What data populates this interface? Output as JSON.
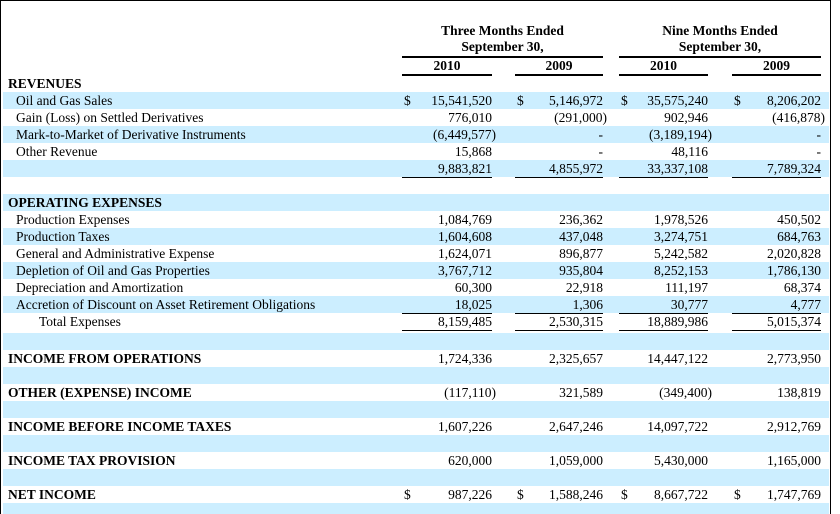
{
  "header": {
    "three_months": "Three Months Ended",
    "nine_months": "Nine Months Ended",
    "period_end_1": "September 30,",
    "period_end_2": "September 30,",
    "years": [
      "2010",
      "2009",
      "2010",
      "2009"
    ]
  },
  "colors": {
    "stripe": "#cceeff"
  },
  "rows": [
    {
      "label": "REVENUES",
      "style": "head",
      "values": []
    },
    {
      "label": "Oil and Gas Sales",
      "values": [
        "15,541,520",
        "5,146,972",
        "35,575,240",
        "8,206,202"
      ],
      "currency": true
    },
    {
      "label": "Gain (Loss) on Settled Derivatives",
      "values": [
        "776,010",
        "(291,000)",
        "902,946",
        "(416,878)"
      ]
    },
    {
      "label": "Mark-to-Market of Derivative Instruments",
      "values": [
        "(6,449,577)",
        "-",
        "(3,189,194)",
        "-"
      ]
    },
    {
      "label": "Other Revenue",
      "values": [
        "15,868",
        "-",
        "48,116",
        "-"
      ],
      "underline": "u"
    },
    {
      "label": "",
      "values": [
        "9,883,821",
        "4,855,972",
        "33,337,108",
        "7,789,324"
      ],
      "underline": "u"
    },
    {
      "label": "",
      "values": []
    },
    {
      "label": "OPERATING EXPENSES",
      "style": "head",
      "values": []
    },
    {
      "label": "Production Expenses",
      "values": [
        "1,084,769",
        "236,362",
        "1,978,526",
        "450,502"
      ]
    },
    {
      "label": "Production Taxes",
      "values": [
        "1,604,608",
        "437,048",
        "3,274,751",
        "684,763"
      ]
    },
    {
      "label": "General and Administrative Expense",
      "values": [
        "1,624,071",
        "896,877",
        "5,242,582",
        "2,020,828"
      ]
    },
    {
      "label": "Depletion of Oil and Gas Properties",
      "values": [
        "3,767,712",
        "935,804",
        "8,252,153",
        "1,786,130"
      ]
    },
    {
      "label": "Depreciation and Amortization",
      "values": [
        "60,300",
        "22,918",
        "111,197",
        "68,374"
      ]
    },
    {
      "label": "Accretion of Discount on Asset Retirement Obligations",
      "values": [
        "18,025",
        "1,306",
        "30,777",
        "4,777"
      ],
      "underline": "u"
    },
    {
      "label": "Total Expenses",
      "style": "ind2",
      "values": [
        "8,159,485",
        "2,530,315",
        "18,889,986",
        "5,015,374"
      ],
      "underline": "u"
    },
    {
      "label": "",
      "values": []
    },
    {
      "label": "INCOME FROM OPERATIONS",
      "style": "head",
      "values": [
        "1,724,336",
        "2,325,657",
        "14,447,122",
        "2,773,950"
      ]
    },
    {
      "label": "",
      "values": []
    },
    {
      "label": "OTHER (EXPENSE) INCOME",
      "style": "head",
      "values": [
        "(117,110)",
        "321,589",
        "(349,400)",
        "138,819"
      ],
      "underline": "u"
    },
    {
      "label": "",
      "values": []
    },
    {
      "label": "INCOME BEFORE INCOME TAXES",
      "style": "head",
      "values": [
        "1,607,226",
        "2,647,246",
        "14,097,722",
        "2,912,769"
      ]
    },
    {
      "label": "",
      "values": []
    },
    {
      "label": "INCOME TAX PROVISION",
      "style": "head",
      "values": [
        "620,000",
        "1,059,000",
        "5,430,000",
        "1,165,000"
      ],
      "underline": "t"
    },
    {
      "label": "",
      "values": []
    },
    {
      "label": "NET INCOME",
      "style": "head",
      "values": [
        "987,226",
        "1,588,246",
        "8,667,722",
        "1,747,769"
      ],
      "currency": true,
      "underline": "d"
    },
    {
      "label": "",
      "values": []
    }
  ],
  "currency_symbol": "$"
}
